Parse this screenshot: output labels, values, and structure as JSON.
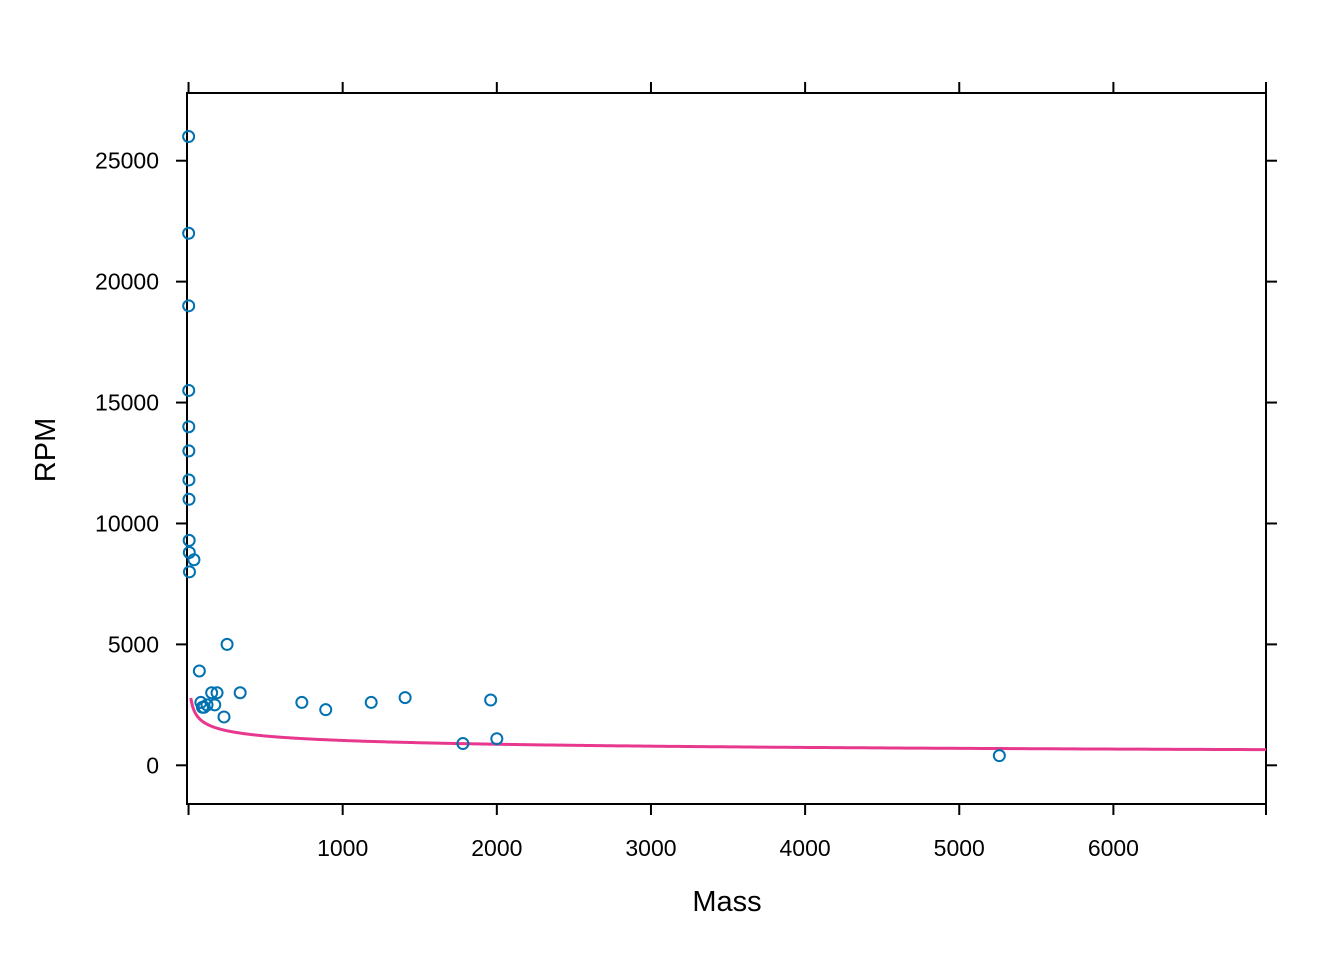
{
  "chart_data": {
    "type": "scatter",
    "title": "",
    "xlabel": "Mass",
    "ylabel": "RPM",
    "xlim": [
      -10,
      6990
    ],
    "ylim": [
      -1600,
      27800
    ],
    "x_ticks": [
      {
        "value": 1000,
        "label": "1000"
      },
      {
        "value": 2000,
        "label": "2000"
      },
      {
        "value": 3000,
        "label": "3000"
      },
      {
        "value": 4000,
        "label": "4000"
      },
      {
        "value": 5000,
        "label": "5000"
      },
      {
        "value": 6000,
        "label": "6000"
      }
    ],
    "y_ticks": [
      {
        "value": 0,
        "label": "0"
      },
      {
        "value": 5000,
        "label": "5000"
      },
      {
        "value": 10000,
        "label": "10000"
      },
      {
        "value": 15000,
        "label": "15000"
      },
      {
        "value": 20000,
        "label": "20000"
      },
      {
        "value": 25000,
        "label": "25000"
      }
    ],
    "grid": false,
    "series": [
      {
        "type": "scatter",
        "marker": "open-circle",
        "color": "#0072b2",
        "points": [
          [
            0.5,
            26000
          ],
          [
            0.7,
            22000
          ],
          [
            1,
            19000
          ],
          [
            1.2,
            15500
          ],
          [
            1.5,
            14000
          ],
          [
            2,
            13000
          ],
          [
            2.5,
            11800
          ],
          [
            3,
            11000
          ],
          [
            4,
            9300
          ],
          [
            5,
            8800
          ],
          [
            6,
            8000
          ],
          [
            35,
            8500
          ],
          [
            70,
            3900
          ],
          [
            80,
            2600
          ],
          [
            90,
            2400
          ],
          [
            100,
            2400
          ],
          [
            120,
            2500
          ],
          [
            150,
            3000
          ],
          [
            170,
            2500
          ],
          [
            185,
            3000
          ],
          [
            230,
            2000
          ],
          [
            250,
            5000
          ],
          [
            335,
            3000
          ],
          [
            735,
            2600
          ],
          [
            890,
            2300
          ],
          [
            1185,
            2600
          ],
          [
            1405,
            2800
          ],
          [
            1780,
            900
          ],
          [
            1960,
            2700
          ],
          [
            2000,
            1100
          ],
          [
            5260,
            400
          ]
        ]
      },
      {
        "type": "line",
        "color": "#e7388e",
        "fit": {
          "form": "power",
          "a": 5300,
          "b": -0.2375,
          "x_from": 15,
          "x_to": 6990
        }
      }
    ]
  }
}
